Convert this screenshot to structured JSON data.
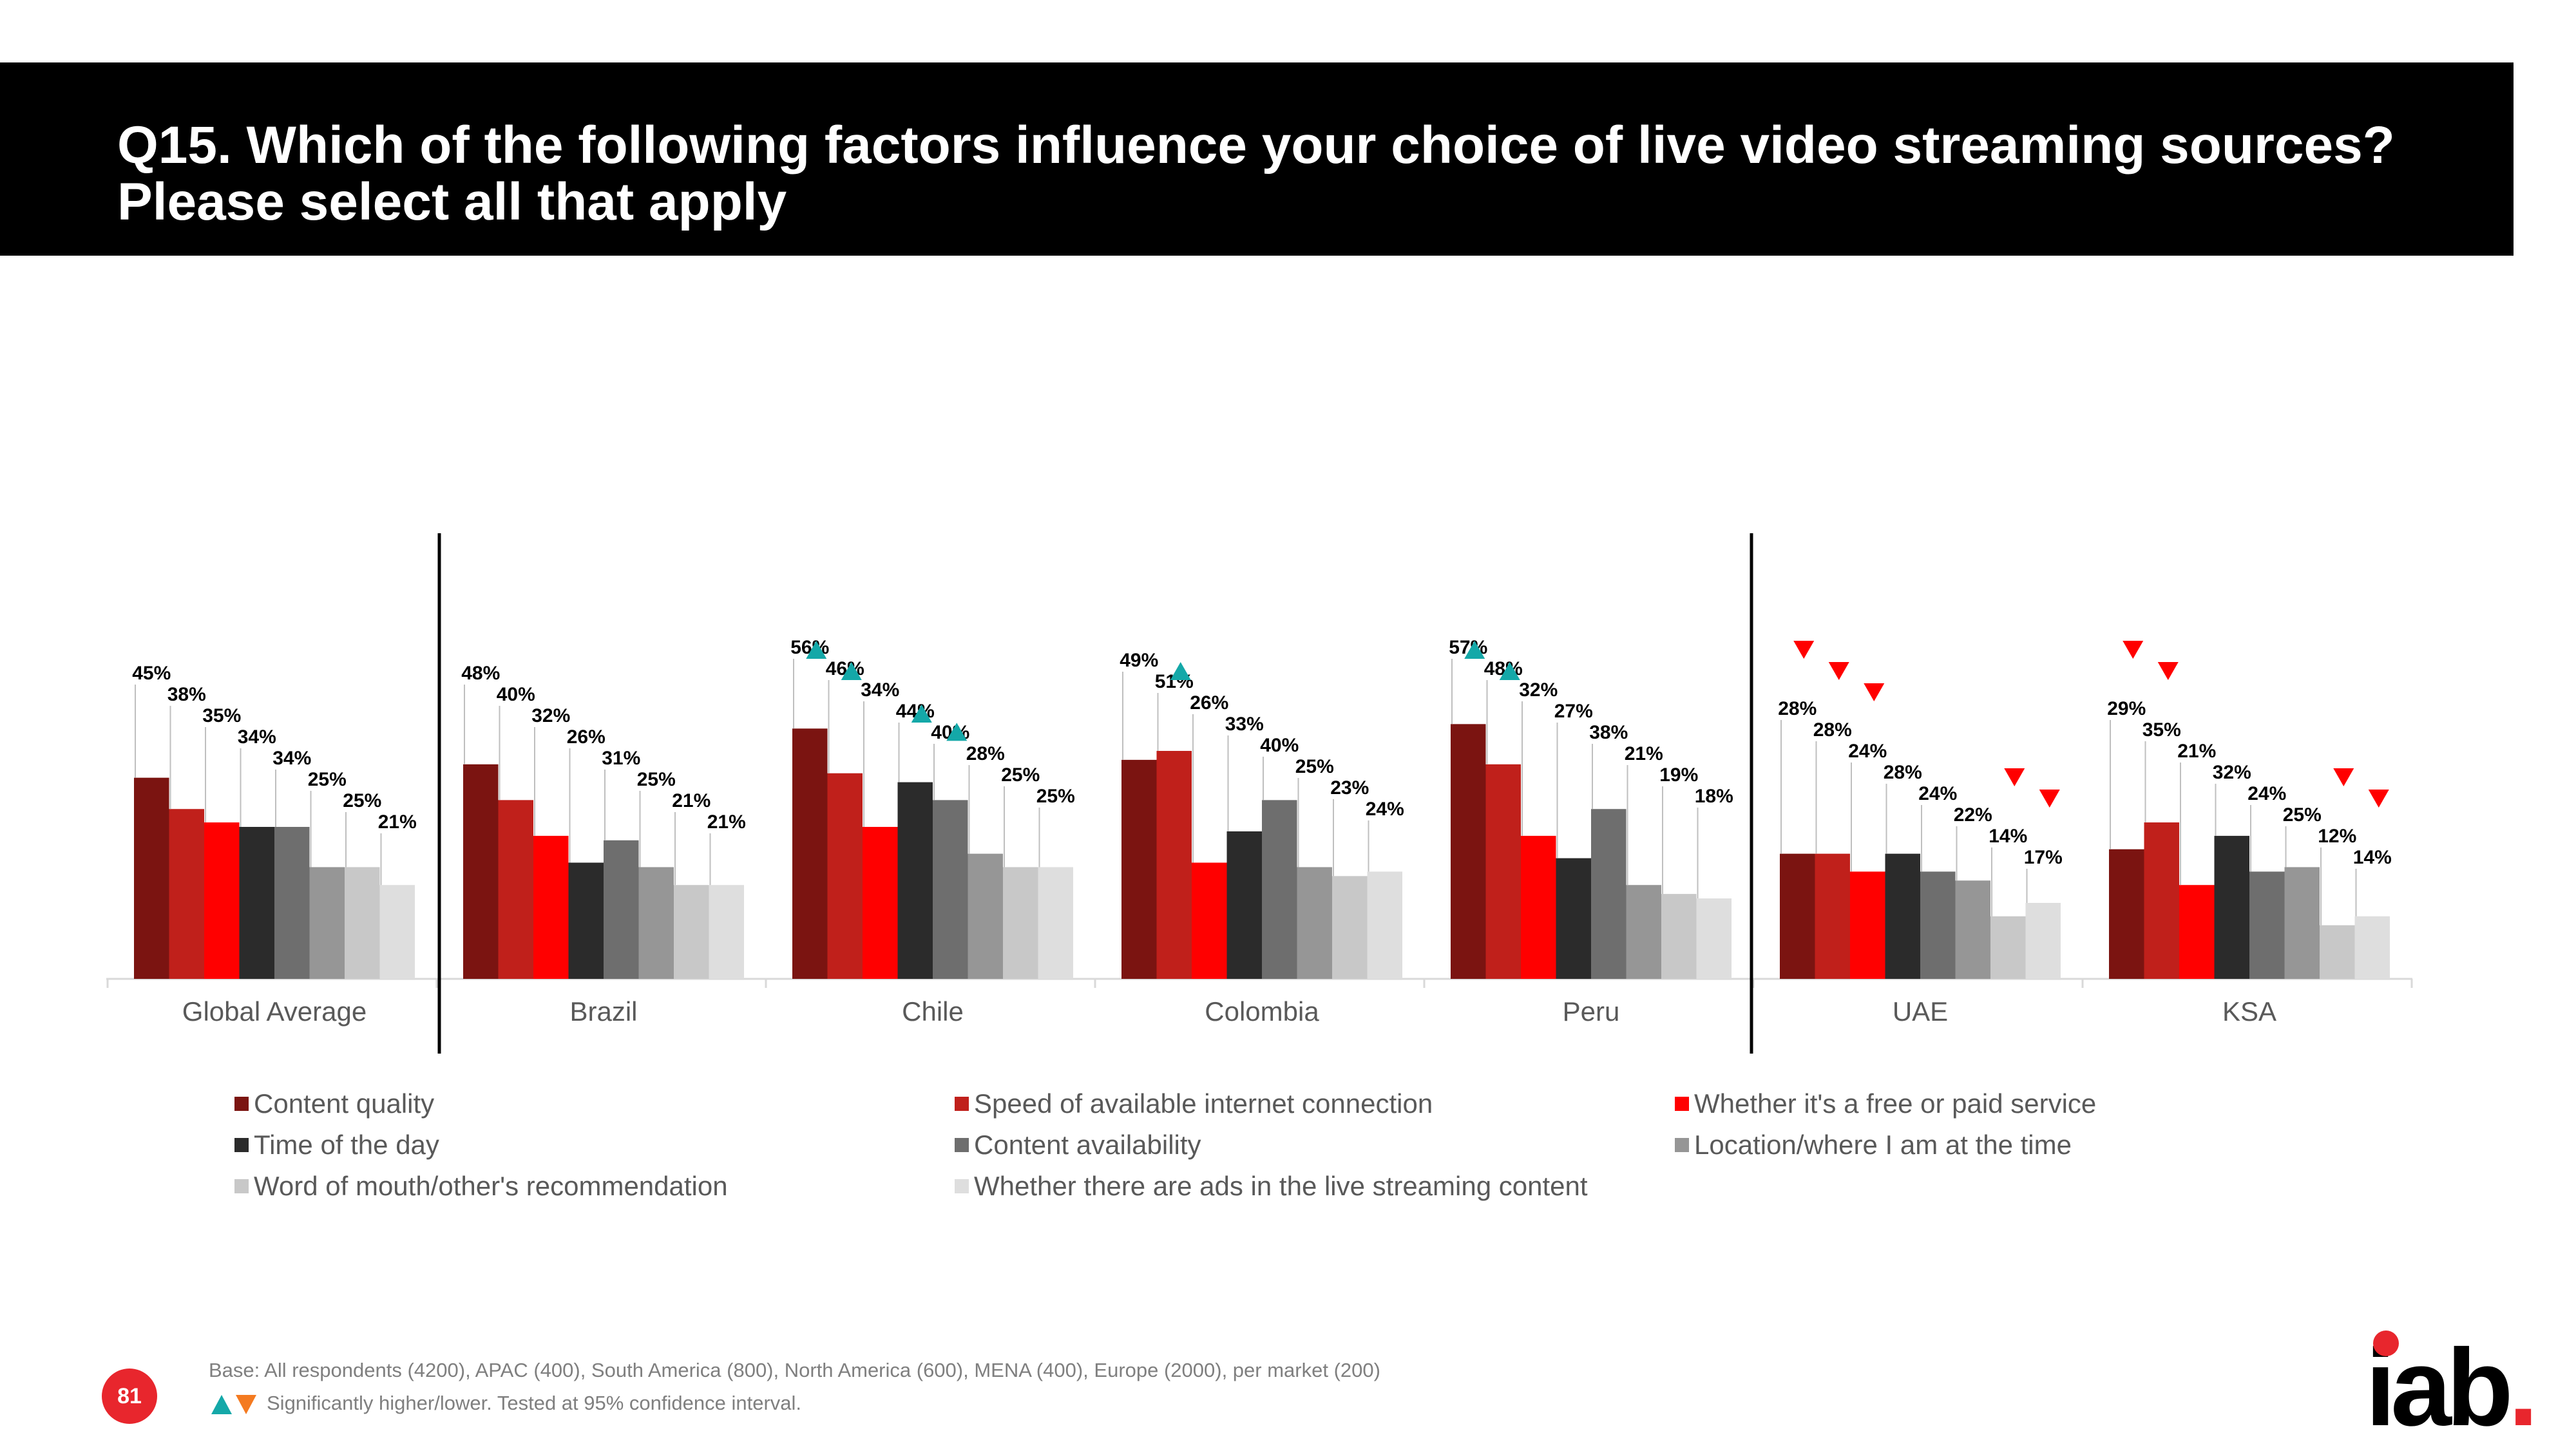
{
  "header": {
    "title": "Q15. Which of the following factors influence your choice of live video streaming sources? Please select all that apply"
  },
  "chart_data": {
    "type": "bar",
    "categories": [
      "Global Average",
      "Brazil",
      "Chile",
      "Colombia",
      "Peru",
      "UAE",
      "KSA"
    ],
    "ylim": [
      0,
      85
    ],
    "grid": false,
    "value_suffix": "%",
    "series": [
      {
        "name": "Content quality",
        "color": "#7b1411",
        "values": [
          45,
          48,
          56,
          49,
          57,
          28,
          29
        ]
      },
      {
        "name": "Speed of available internet connection",
        "color": "#c0201b",
        "values": [
          38,
          40,
          46,
          51,
          48,
          28,
          35
        ]
      },
      {
        "name": "Whether it's a free or paid service",
        "color": "#ff0000",
        "values": [
          35,
          32,
          34,
          26,
          32,
          24,
          21
        ]
      },
      {
        "name": "Time of the day",
        "color": "#2b2b2b",
        "values": [
          34,
          26,
          44,
          33,
          27,
          28,
          32
        ]
      },
      {
        "name": "Content availability",
        "color": "#6e6e6e",
        "values": [
          34,
          31,
          40,
          40,
          38,
          24,
          24
        ]
      },
      {
        "name": "Location/where I am at the time",
        "color": "#969696",
        "values": [
          25,
          25,
          28,
          25,
          21,
          22,
          25
        ]
      },
      {
        "name": "Word of mouth/other's recommendation",
        "color": "#c8c8c8",
        "values": [
          25,
          21,
          25,
          23,
          19,
          14,
          12
        ]
      },
      {
        "name": "Whether there are ads in the live streaming content",
        "color": "#dedede",
        "values": [
          21,
          21,
          25,
          24,
          18,
          17,
          14
        ]
      }
    ],
    "significance": [
      {
        "category": "Chile",
        "series": "Content quality",
        "direction": "higher"
      },
      {
        "category": "Chile",
        "series": "Speed of available internet connection",
        "direction": "higher"
      },
      {
        "category": "Chile",
        "series": "Time of the day",
        "direction": "higher"
      },
      {
        "category": "Chile",
        "series": "Content availability",
        "direction": "higher"
      },
      {
        "category": "Colombia",
        "series": "Speed of available internet connection",
        "direction": "higher"
      },
      {
        "category": "Peru",
        "series": "Content quality",
        "direction": "higher"
      },
      {
        "category": "Peru",
        "series": "Speed of available internet connection",
        "direction": "higher"
      },
      {
        "category": "UAE",
        "series": "Content quality",
        "direction": "lower"
      },
      {
        "category": "UAE",
        "series": "Speed of available internet connection",
        "direction": "lower"
      },
      {
        "category": "UAE",
        "series": "Whether it's a free or paid service",
        "direction": "lower"
      },
      {
        "category": "UAE",
        "series": "Word of mouth/other's recommendation",
        "direction": "lower"
      },
      {
        "category": "UAE",
        "series": "Whether there are ads in the live streaming content",
        "direction": "lower"
      },
      {
        "category": "KSA",
        "series": "Content quality",
        "direction": "lower"
      },
      {
        "category": "KSA",
        "series": "Speed of available internet connection",
        "direction": "lower"
      },
      {
        "category": "KSA",
        "series": "Word of mouth/other's recommendation",
        "direction": "lower"
      },
      {
        "category": "KSA",
        "series": "Whether there are ads in the live streaming content",
        "direction": "lower"
      }
    ],
    "legend_position": "bottom"
  },
  "legend": {
    "items": [
      "Content quality",
      "Speed of available internet connection",
      "Whether it's a free or paid service",
      "Time of the day",
      "Content availability",
      "Location/where I am at the time",
      "Word of mouth/other's recommendation",
      "Whether there are ads in the live streaming content"
    ]
  },
  "footer": {
    "base_note": "Base: All respondents (4200), APAC (400), South America (800), North America (600), MENA (400), Europe (2000), per market (200)",
    "significance_note": "Significantly higher/lower. Tested at 95% confidence interval.",
    "page_number": "81",
    "logo_text": "iab."
  },
  "colors": {
    "higher_marker": "#14a8a8",
    "lower_marker": "#ff0000",
    "brand_red": "#e8262d"
  }
}
